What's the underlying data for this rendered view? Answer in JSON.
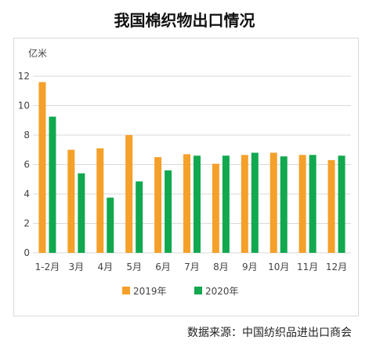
{
  "title": "我国棉织物出口情况",
  "source": "数据来源：中国纺织品进出口商会",
  "colors": {
    "series_2019": "#f5a02a",
    "series_2020": "#11a84f",
    "grid": "#d9d9d9",
    "axis_text": "#444444"
  },
  "chart_data": {
    "type": "bar",
    "unit_label": "亿米",
    "categories": [
      "1-2月",
      "3月",
      "4月",
      "5月",
      "6月",
      "7月",
      "8月",
      "9月",
      "10月",
      "11月",
      "12月"
    ],
    "series": [
      {
        "name": "2019年",
        "values": [
          11.6,
          7.0,
          7.1,
          8.0,
          6.5,
          6.7,
          6.05,
          6.65,
          6.8,
          6.65,
          6.3
        ]
      },
      {
        "name": "2020年",
        "values": [
          9.25,
          5.4,
          3.75,
          4.85,
          5.6,
          6.6,
          6.6,
          6.8,
          6.55,
          6.65,
          6.6
        ]
      }
    ],
    "ylim": [
      0,
      12
    ],
    "yticks": [
      0,
      2,
      4,
      6,
      8,
      10,
      12
    ],
    "grid": true,
    "legend_position": "bottom-center"
  }
}
